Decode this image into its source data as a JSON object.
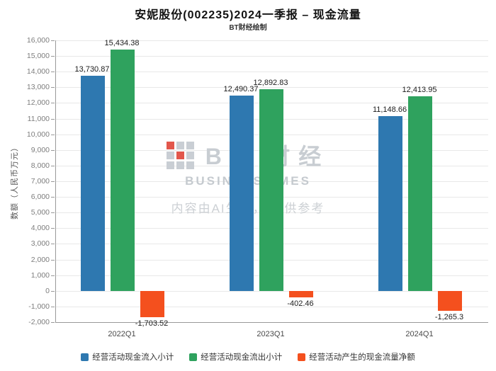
{
  "title": "安妮股份(002235)2024一季报 – 现金流量",
  "subtitle": "BT财经绘制",
  "watermark": {
    "brand": "BT 财经",
    "brand_sub": "BUSINESSTIMES",
    "disclaimer": "内容由AI生成， 仅供参考",
    "logo_icon": "bt-logo-icon",
    "logo_gray": "#c9ced4",
    "logo_red": "#e2574c"
  },
  "chart_data": {
    "type": "bar",
    "categories": [
      "2022Q1",
      "2023Q1",
      "2024Q1"
    ],
    "series": [
      {
        "name": "经营活动现金流入小计",
        "color": "#2e78b0",
        "values": [
          13730.87,
          12490.37,
          11148.66
        ],
        "labels": [
          "13,730.87",
          "12,490.37",
          "11,148.66"
        ]
      },
      {
        "name": "经营活动现金流出小计",
        "color": "#2fa25e",
        "values": [
          15434.38,
          12892.83,
          12413.95
        ],
        "labels": [
          "15,434.38",
          "12,892.83",
          "12,413.95"
        ]
      },
      {
        "name": "经营活动产生的现金流量净额",
        "color": "#f4501e",
        "values": [
          -1703.52,
          -402.46,
          -1265.3
        ],
        "labels": [
          "-1,703.52",
          "-402.46",
          "-1,265.3"
        ]
      }
    ],
    "title": "安妮股份(002235)2024一季报 – 现金流量",
    "xlabel": "",
    "ylabel": "数额（人民币万元）",
    "ylim": [
      -2000,
      16000
    ],
    "ytick_step": 1000,
    "grid": true,
    "legend_position": "bottom"
  }
}
